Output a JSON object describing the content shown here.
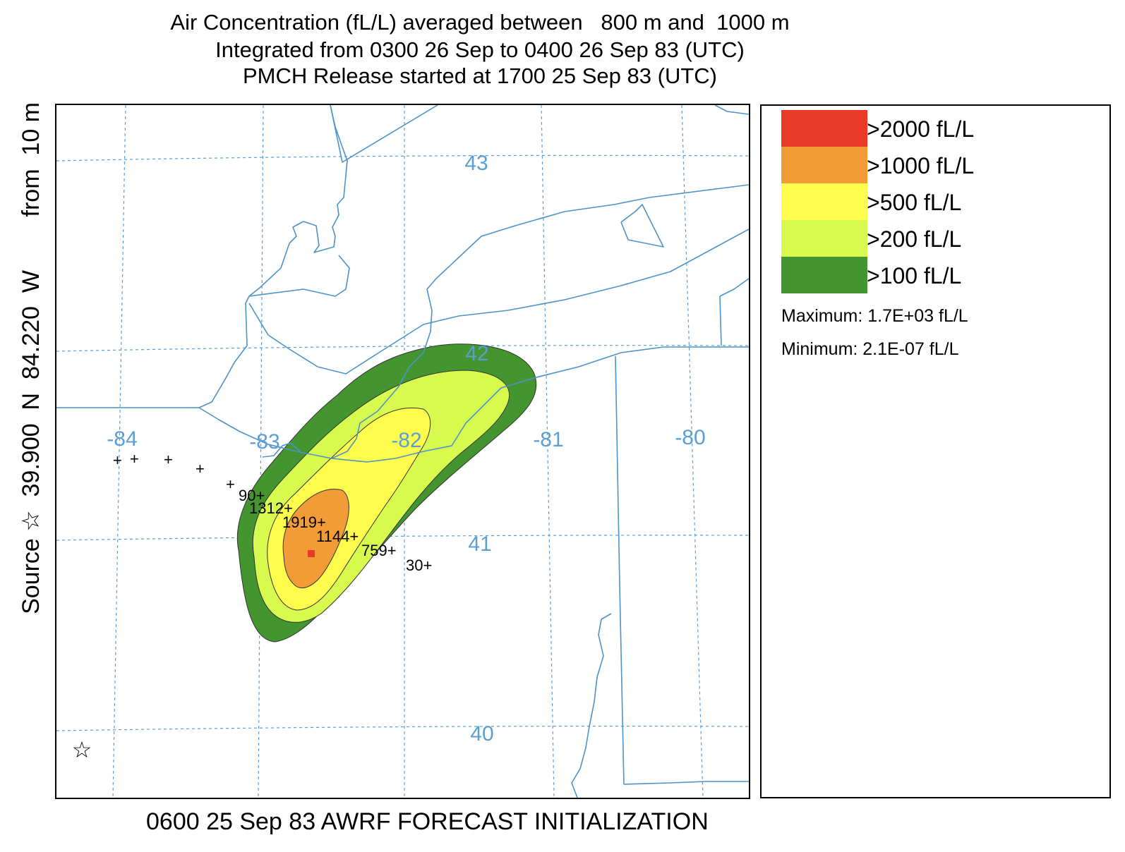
{
  "title": {
    "line1": "Air Concentration (fL/L) averaged between   800 m and  1000 m",
    "line2": "Integrated from 0300 26 Sep to 0400 26 Sep 83 (UTC)",
    "line3": "PMCH Release started at 1700 25 Sep 83 (UTC)"
  },
  "side_label": "Source ☆  39.900  N  84.220  W        from  10 m",
  "footer": "0600 25 Sep 83 AWRF FORECAST INITIALIZATION",
  "source_marker_symbol": "☆",
  "map": {
    "longitude_labels": [
      "-84",
      "-83",
      "-82",
      "-81",
      "-80"
    ],
    "latitude_labels": [
      "43",
      "42",
      "41",
      "40"
    ],
    "grid_color": "#5a9fd4",
    "boundary_color": "#4b93c8"
  },
  "legend": {
    "items": [
      {
        "label": ">2000 fL/L",
        "color": "#e83a24"
      },
      {
        "label": ">1000 fL/L",
        "color": "#f29c38"
      },
      {
        "label": ">500 fL/L",
        "color": "#fefc4c"
      },
      {
        "label": ">200 fL/L",
        "color": "#d8fa4e"
      },
      {
        "label": ">100 fL/L",
        "color": "#44952f"
      }
    ],
    "maximum": "Maximum: 1.7E+03 fL/L",
    "minimum": "Minimum: 2.1E-07 fL/L"
  },
  "sampler_values": [
    "90",
    "1312",
    "1919",
    "1144",
    "759",
    "30"
  ]
}
